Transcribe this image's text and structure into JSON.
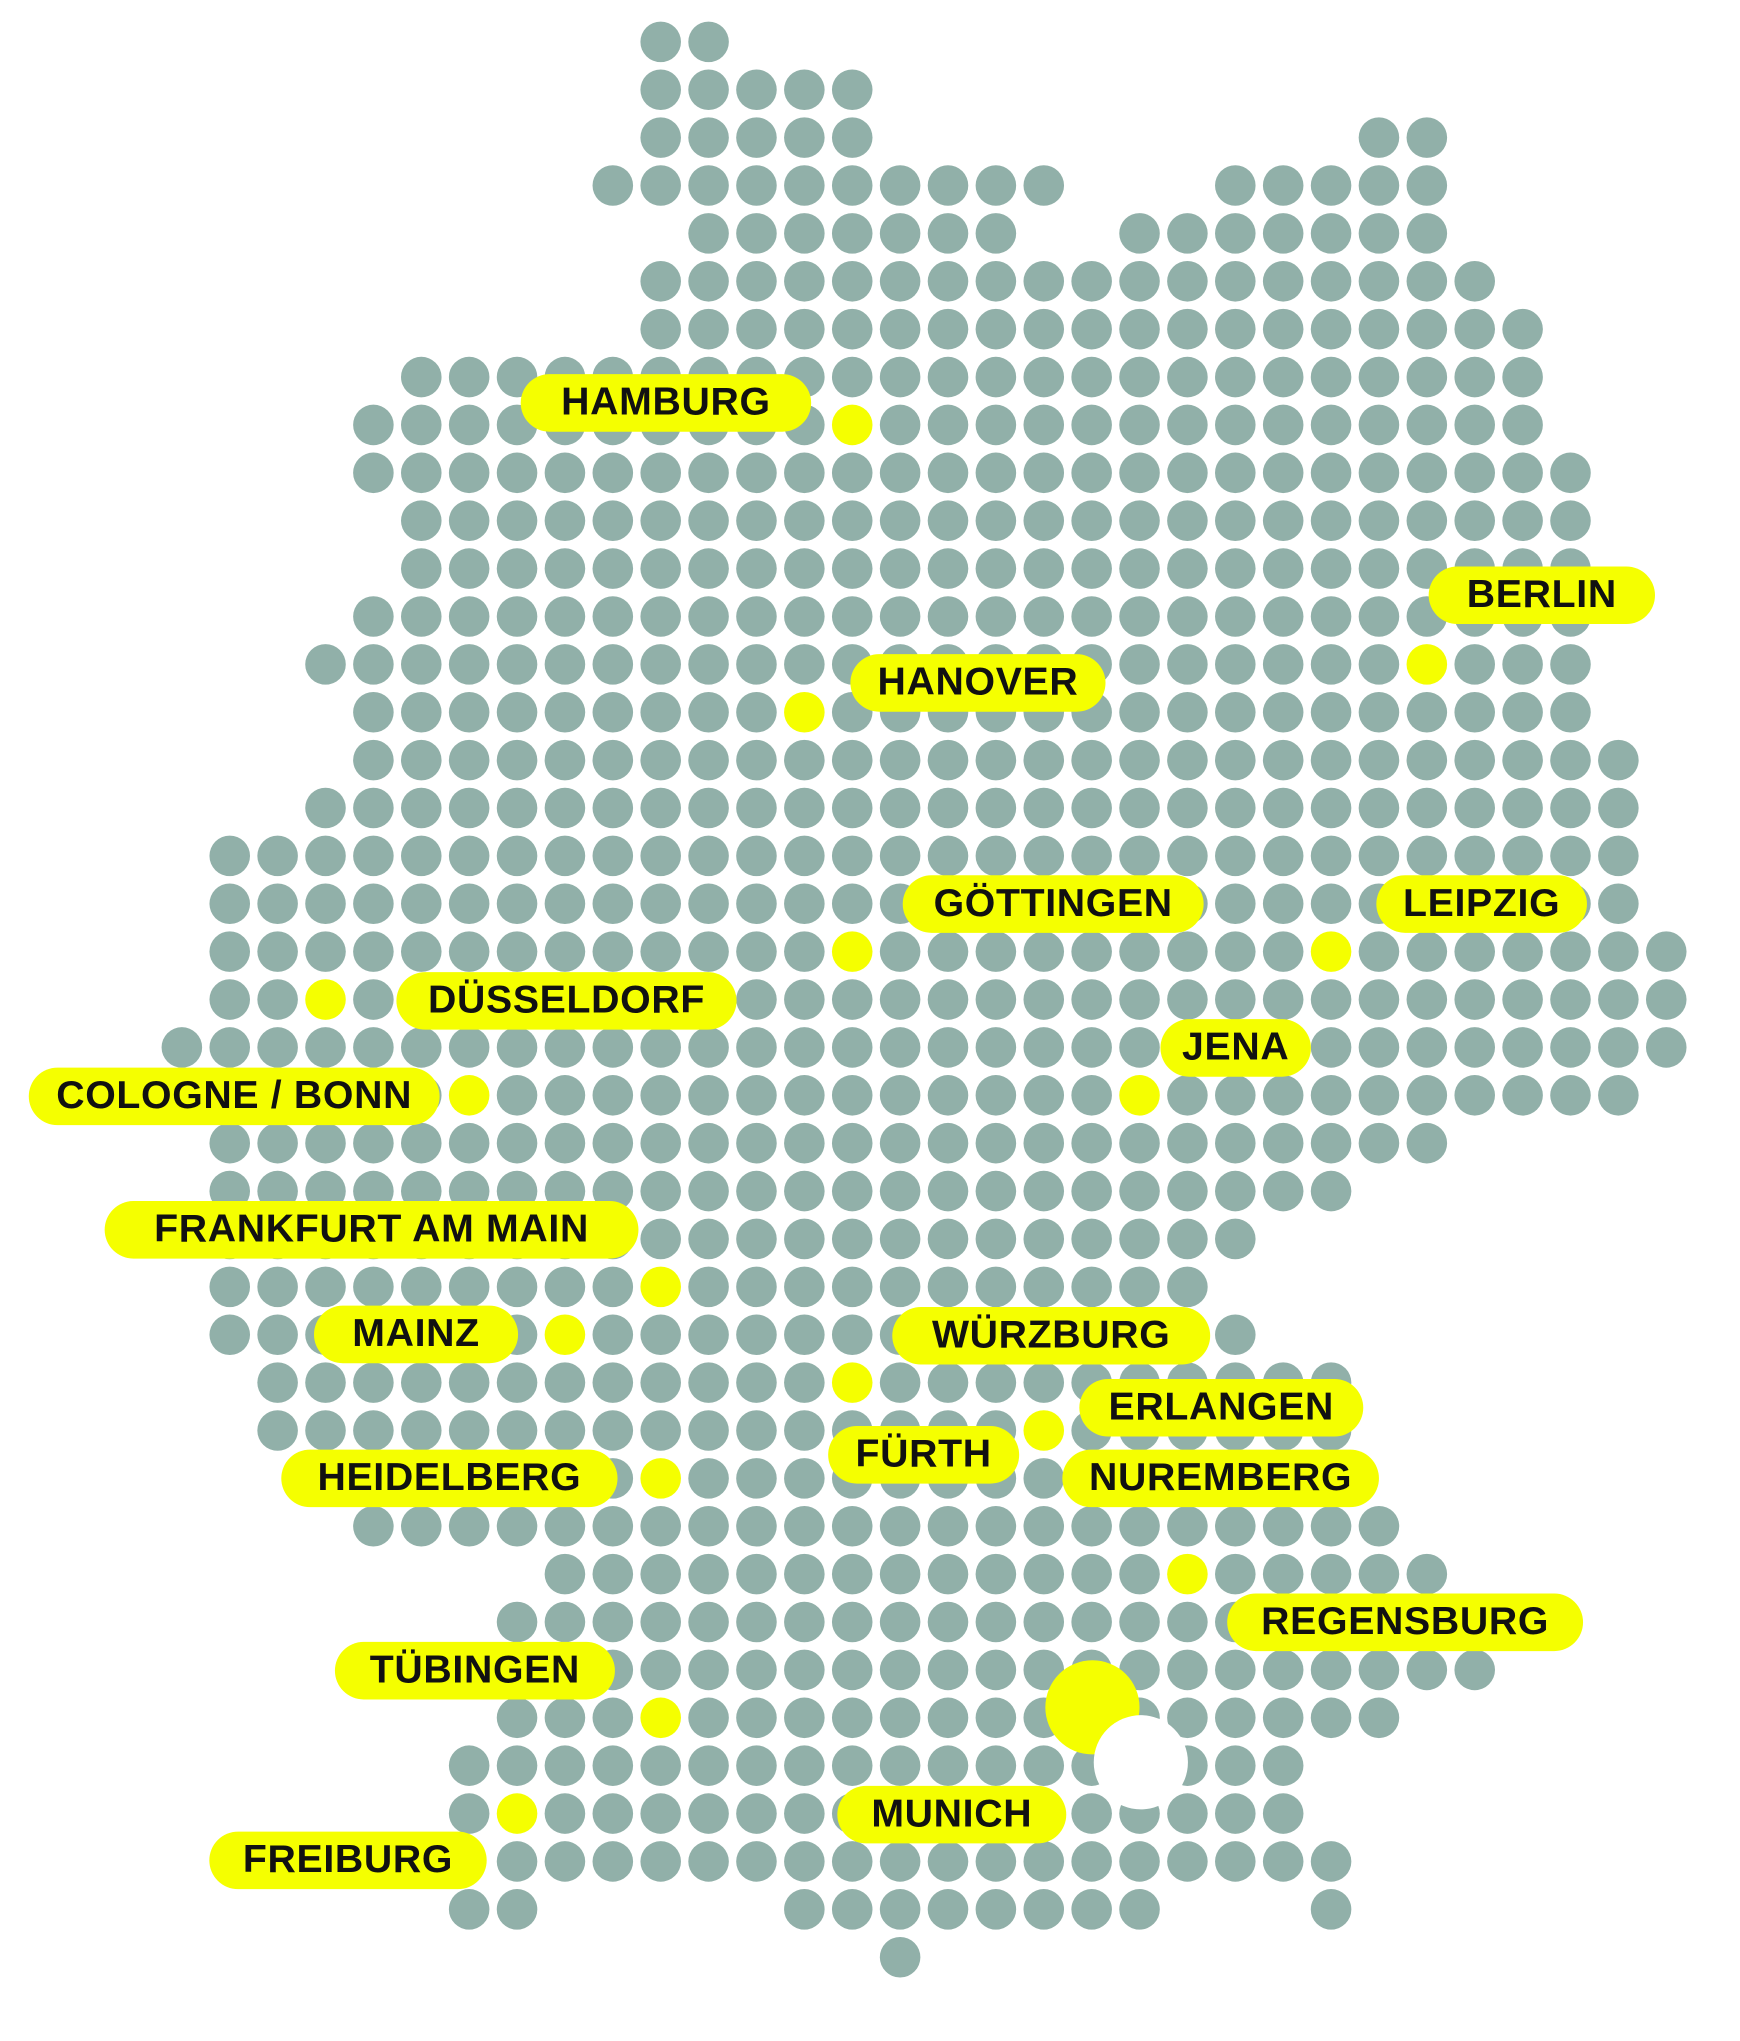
{
  "map": {
    "colors": {
      "dot": "#91b0a9",
      "highlight": "#f5ff00",
      "label_text": "#111111"
    },
    "cities": [
      {
        "name": "HAMBURG"
      },
      {
        "name": "BERLIN"
      },
      {
        "name": "HANOVER"
      },
      {
        "name": "GÖTTINGEN"
      },
      {
        "name": "LEIPZIG"
      },
      {
        "name": "DÜSSELDORF"
      },
      {
        "name": "JENA"
      },
      {
        "name": "COLOGNE / BONN"
      },
      {
        "name": "FRANKFURT AM MAIN"
      },
      {
        "name": "MAINZ"
      },
      {
        "name": "WÜRZBURG"
      },
      {
        "name": "ERLANGEN"
      },
      {
        "name": "FÜRTH"
      },
      {
        "name": "NUREMBERG"
      },
      {
        "name": "HEIDELBERG"
      },
      {
        "name": "REGENSBURG"
      },
      {
        "name": "TÜBINGEN"
      },
      {
        "name": "MUNICH"
      },
      {
        "name": "FREIBURG"
      }
    ]
  }
}
